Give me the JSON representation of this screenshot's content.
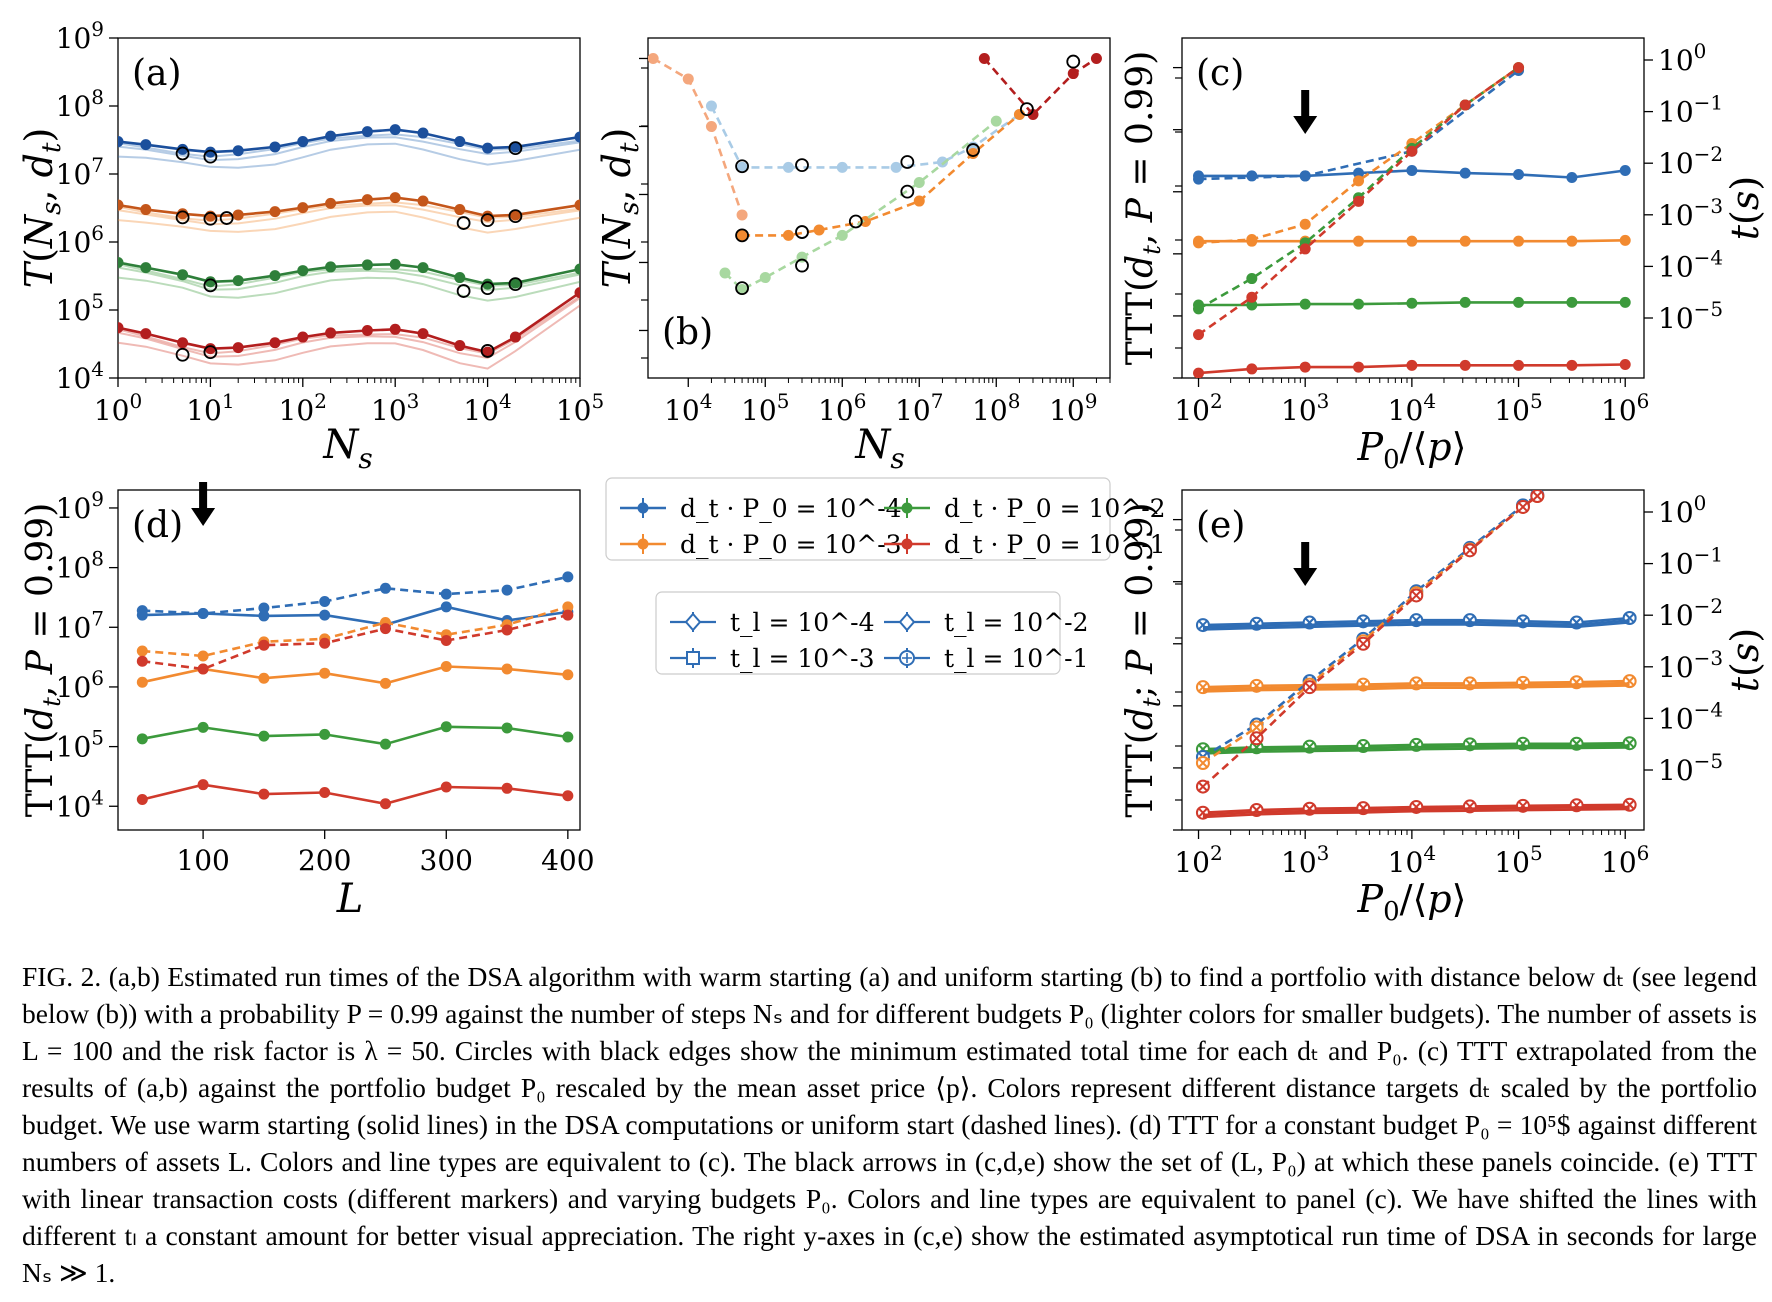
{
  "colors": {
    "blue": "#2f6db5",
    "orange": "#f28a30",
    "green": "#3c9a3c",
    "red": "#d03a2c",
    "dark_blue": "#1b4f9c",
    "dark_orange": "#c4561a",
    "dark_green": "#2e7f3a",
    "dark_red": "#b31e1e",
    "light_blue": "#a9cbe6",
    "light_orange": "#f4a77d",
    "light_green": "#a8d8a0",
    "axis": "#000000"
  },
  "figure": {
    "label": "FIG. 2.",
    "panels": [
      {
        "id": "a",
        "tag": "(a)",
        "xlabel": "N_s",
        "ylabel": "T(N_s, d_t)"
      },
      {
        "id": "b",
        "tag": "(b)",
        "xlabel": "N_s",
        "ylabel": "T(N_s, d_t)"
      },
      {
        "id": "c",
        "tag": "(c)",
        "xlabel": "P_0/⟨p⟩",
        "ylabel": "TTT(d_t, P = 0.99)",
        "ylabel_right": "t(s)"
      },
      {
        "id": "d",
        "tag": "(d)",
        "xlabel": "L",
        "ylabel": "TTT(d_t, P = 0.99)"
      },
      {
        "id": "e",
        "tag": "(e)",
        "xlabel": "P_0/⟨p⟩",
        "ylabel": "TTT(d_t; P = 0.99)",
        "ylabel_right": "t(s)"
      }
    ],
    "legend_dt": [
      {
        "label": "d_t · P_0 = 10^-4",
        "color": "#2f6db5"
      },
      {
        "label": "d_t · P_0 = 10^-3",
        "color": "#f28a30"
      },
      {
        "label": "d_t · P_0 = 10^-2",
        "color": "#3c9a3c"
      },
      {
        "label": "d_t · P_0 = 10^-1",
        "color": "#d03a2c"
      }
    ],
    "legend_tl": [
      {
        "label": "t_l = 10^-4",
        "marker": "diamond"
      },
      {
        "label": "t_l = 10^-3",
        "marker": "square"
      },
      {
        "label": "t_l = 10^-2",
        "marker": "diamond"
      },
      {
        "label": "t_l = 10^-1",
        "marker": "circle-plus"
      }
    ]
  },
  "chart_data": [
    {
      "panel": "a",
      "type": "line",
      "xscale": "log",
      "yscale": "log",
      "xlim": [
        1,
        100000
      ],
      "ylim": [
        10000,
        1000000000
      ],
      "xticks": [
        "10^0",
        "10^1",
        "10^2",
        "10^3",
        "10^4",
        "10^5"
      ],
      "yticks": [
        "10^4",
        "10^5",
        "10^6",
        "10^7",
        "10^8",
        "10^9"
      ],
      "x": [
        1,
        2,
        5,
        10,
        20,
        50,
        100,
        200,
        500,
        1000,
        2000,
        5000,
        10000,
        20000,
        100000
      ],
      "series": [
        {
          "color": "blue",
          "values": [
            30000000,
            27000000,
            23000000,
            21000000,
            22000000,
            25000000,
            30000000,
            36000000,
            42000000,
            45000000,
            40000000,
            30000000,
            24000000,
            25000000,
            35000000
          ]
        },
        {
          "color": "orange",
          "values": [
            3500000,
            3000000,
            2600000,
            2400000,
            2500000,
            2800000,
            3200000,
            3700000,
            4200000,
            4500000,
            4000000,
            3000000,
            2400000,
            2500000,
            3500000
          ]
        },
        {
          "color": "green",
          "values": [
            500000,
            420000,
            330000,
            260000,
            270000,
            320000,
            380000,
            430000,
            460000,
            470000,
            420000,
            300000,
            240000,
            250000,
            400000
          ]
        },
        {
          "color": "red",
          "values": [
            55000,
            45000,
            33000,
            27000,
            28000,
            33000,
            40000,
            46000,
            50000,
            52000,
            45000,
            30000,
            24000,
            40000,
            180000
          ]
        }
      ],
      "minima": [
        {
          "x": 5,
          "y": 20000000
        },
        {
          "x": 10,
          "y": 18000000
        },
        {
          "x": 20000,
          "y": 24000000
        },
        {
          "x": 5,
          "y": 2300000
        },
        {
          "x": 10,
          "y": 2200000
        },
        {
          "x": 15,
          "y": 2250000
        },
        {
          "x": 5500,
          "y": 1900000
        },
        {
          "x": 10000,
          "y": 2100000
        },
        {
          "x": 20000,
          "y": 2400000
        },
        {
          "x": 10,
          "y": 230000
        },
        {
          "x": 5500,
          "y": 190000
        },
        {
          "x": 10000,
          "y": 210000
        },
        {
          "x": 20000,
          "y": 240000
        },
        {
          "x": 5,
          "y": 22000
        },
        {
          "x": 10,
          "y": 24000
        },
        {
          "x": 10000,
          "y": 25000
        }
      ]
    },
    {
      "panel": "b",
      "type": "line",
      "xscale": "log",
      "yscale": "log",
      "xlim": [
        3000,
        3000000000
      ],
      "ylim": [
        20000,
        2000000000
      ],
      "xticks": [
        "10^4",
        "10^5",
        "10^6",
        "10^7",
        "10^8",
        "10^9"
      ],
      "series": [
        {
          "color": "light_orange",
          "style": "dashed",
          "x": [
            3500,
            10000,
            20000,
            50000
          ],
          "values": [
            1000000000,
            500000000,
            100000000,
            5000000
          ]
        },
        {
          "color": "light_blue",
          "style": "dashed",
          "x": [
            20000,
            50000,
            200000,
            1000000,
            5000000,
            20000000,
            50000000,
            200000000
          ],
          "values": [
            200000000,
            25000000,
            25000000,
            25000000,
            25000000,
            30000000,
            50000000,
            150000000
          ]
        },
        {
          "color": "orange",
          "style": "dashed",
          "x": [
            50000,
            200000,
            500000,
            2000000,
            10000000,
            50000000,
            200000000
          ],
          "values": [
            2500000,
            2500000,
            3000000,
            4000000,
            8000000,
            40000000,
            150000000
          ]
        },
        {
          "color": "light_green",
          "style": "dashed",
          "x": [
            30000,
            50000,
            100000,
            300000,
            1000000,
            10000000,
            100000000
          ],
          "values": [
            700000,
            400000,
            600000,
            1200000,
            2500000,
            15000000,
            120000000
          ]
        },
        {
          "color": "dark_red",
          "style": "dashed",
          "x": [
            70000000,
            300000000,
            1000000000,
            2000000000
          ],
          "values": [
            1000000000,
            150000000,
            600000000,
            1000000000
          ]
        }
      ],
      "minima": [
        {
          "x": 50000,
          "y": 26000000
        },
        {
          "x": 300000,
          "y": 27000000
        },
        {
          "x": 7000000,
          "y": 30000000
        },
        {
          "x": 50000000,
          "y": 45000000
        },
        {
          "x": 50000,
          "y": 2500000
        },
        {
          "x": 300000,
          "y": 2800000
        },
        {
          "x": 1500000,
          "y": 4000000
        },
        {
          "x": 7000000,
          "y": 11000000
        },
        {
          "x": 50000,
          "y": 420000
        },
        {
          "x": 300000,
          "y": 900000
        },
        {
          "x": 250000000,
          "y": 180000000
        },
        {
          "x": 1000000000,
          "y": 900000000
        }
      ]
    },
    {
      "panel": "c",
      "type": "line",
      "xscale": "log",
      "yscale": "log",
      "xlim": [
        70,
        1500000
      ],
      "ylim": [
        10000,
        3000000000
      ],
      "xticks": [
        "10^2",
        "10^3",
        "10^4",
        "10^5",
        "10^6"
      ],
      "yticks_right": [
        "10^-5",
        "10^-4",
        "10^-3",
        "10^-2",
        "10^-1",
        "10^0"
      ],
      "x": [
        100,
        316,
        1000,
        3162,
        10000,
        31623,
        100000,
        316228,
        1000000
      ],
      "series": [
        {
          "color": "blue",
          "style": "solid",
          "values": [
            18000000,
            18000000,
            18000000,
            20000000,
            22000000,
            20000000,
            19000000,
            17000000,
            22000000
          ]
        },
        {
          "color": "orange",
          "style": "solid",
          "values": [
            1600000,
            1600000,
            1600000,
            1600000,
            1600000,
            1600000,
            1600000,
            1600000,
            1650000
          ]
        },
        {
          "color": "green",
          "style": "solid",
          "values": [
            150000,
            150000,
            155000,
            155000,
            160000,
            165000,
            165000,
            165000,
            165000
          ]
        },
        {
          "color": "red",
          "style": "solid",
          "values": [
            12000,
            14000,
            15000,
            15000,
            16000,
            16000,
            16000,
            16000,
            16500
          ]
        },
        {
          "color": "blue",
          "style": "dashed",
          "x": [
            100,
            1000,
            10000,
            100000
          ],
          "values": [
            16000000,
            18000000,
            45000000,
            900000000
          ]
        },
        {
          "color": "orange",
          "style": "dashed",
          "x": [
            100,
            316,
            1000,
            3162,
            10000,
            31623,
            100000
          ],
          "values": [
            1500000,
            1700000,
            3000000,
            15000000,
            60000000,
            250000000,
            1000000000
          ]
        },
        {
          "color": "green",
          "style": "dashed",
          "x": [
            100,
            316,
            1000,
            3162,
            10000,
            31623,
            100000
          ],
          "values": [
            130000,
            400000,
            1500000,
            8000000,
            50000000,
            250000000,
            1000000000
          ]
        },
        {
          "color": "red",
          "style": "dashed",
          "x": [
            100,
            316,
            1000,
            3162,
            10000,
            31623,
            100000
          ],
          "values": [
            50000,
            200000,
            1200000,
            7000000,
            45000000,
            250000000,
            1000000000
          ]
        }
      ],
      "arrow_at_x": 1000
    },
    {
      "panel": "d",
      "type": "line",
      "xscale": "linear",
      "yscale": "log",
      "xlim": [
        30,
        410
      ],
      "ylim": [
        4000,
        2000000000
      ],
      "xticks": [
        100,
        200,
        300,
        400
      ],
      "yticks": [
        "10^4",
        "10^5",
        "10^6",
        "10^7",
        "10^8",
        "10^9"
      ],
      "x": [
        50,
        100,
        150,
        200,
        250,
        300,
        350,
        400
      ],
      "series": [
        {
          "color": "blue",
          "style": "solid",
          "values": [
            16000000,
            17000000,
            15500000,
            16000000,
            11000000,
            22000000,
            13000000,
            18000000
          ]
        },
        {
          "color": "blue",
          "style": "dashed",
          "values": [
            19000000,
            17000000,
            21000000,
            27000000,
            45000000,
            36000000,
            42000000,
            70000000
          ]
        },
        {
          "color": "orange",
          "style": "solid",
          "values": [
            1200000,
            2000000,
            1400000,
            1700000,
            1150000,
            2200000,
            2000000,
            1600000
          ]
        },
        {
          "color": "orange",
          "style": "dashed",
          "values": [
            4000000,
            3300000,
            5700000,
            6400000,
            12000000,
            7500000,
            11000000,
            22000000
          ]
        },
        {
          "color": "red",
          "style": "dashed",
          "values": [
            2700000,
            2000000,
            5000000,
            5400000,
            9500000,
            6000000,
            9000000,
            16000000
          ]
        },
        {
          "color": "green",
          "style": "solid",
          "values": [
            135000,
            210000,
            150000,
            160000,
            110000,
            215000,
            205000,
            145000
          ]
        },
        {
          "color": "red",
          "style": "solid",
          "values": [
            13000,
            23000,
            16000,
            17000,
            11000,
            21000,
            20000,
            15000
          ]
        }
      ],
      "arrow_at_x": 100
    },
    {
      "panel": "e",
      "type": "line",
      "xscale": "log",
      "yscale": "log",
      "xlim": [
        70,
        1500000
      ],
      "ylim": [
        10000,
        3000000000
      ],
      "xticks": [
        "10^2",
        "10^3",
        "10^4",
        "10^5",
        "10^6"
      ],
      "yticks_right": [
        "10^-5",
        "10^-4",
        "10^-3",
        "10^-2",
        "10^-1",
        "10^0"
      ],
      "x": [
        110,
        350,
        1100,
        3500,
        11000,
        35000,
        110000,
        350000,
        1100000
      ],
      "series": [
        {
          "color": "blue",
          "style": "solid",
          "values": [
            20000000,
            21000000,
            22000000,
            23000000,
            24000000,
            24000000,
            23000000,
            22000000,
            26000000
          ]
        },
        {
          "color": "orange",
          "style": "solid",
          "values": [
            2000000,
            2100000,
            2150000,
            2200000,
            2300000,
            2300000,
            2350000,
            2400000,
            2500000
          ]
        },
        {
          "color": "green",
          "style": "solid",
          "values": [
            200000,
            215000,
            220000,
            225000,
            235000,
            240000,
            245000,
            245000,
            250000
          ]
        },
        {
          "color": "red",
          "style": "solid",
          "values": [
            19000,
            21000,
            22000,
            22500,
            23500,
            24000,
            24500,
            25000,
            25500
          ]
        },
        {
          "color": "blue",
          "style": "dashed",
          "x": [
            110,
            350,
            1100,
            3500,
            11000,
            35000,
            110000,
            150000
          ],
          "values": [
            150000,
            500000,
            2500000,
            12000000,
            70000000,
            350000000,
            1700000000,
            2500000000
          ]
        },
        {
          "color": "orange",
          "style": "dashed",
          "x": [
            110,
            350,
            1100,
            3500,
            11000,
            35000,
            110000,
            150000
          ],
          "values": [
            120000,
            450000,
            2200000,
            11000000,
            65000000,
            330000000,
            1600000000,
            2400000000
          ]
        },
        {
          "color": "red",
          "style": "dashed",
          "x": [
            110,
            350,
            1100,
            3500,
            11000,
            35000,
            110000,
            150000
          ],
          "values": [
            50000,
            300000,
            2000000,
            10000000,
            60000000,
            320000000,
            1600000000,
            2400000000
          ]
        }
      ],
      "arrow_at_x": 1000
    }
  ],
  "caption": {
    "text": "FIG. 2. (a,b) Estimated run times of the DSA algorithm with warm starting (a) and uniform starting (b) to find a portfolio with distance below dₜ (see legend below (b)) with a probability P = 0.99 against the number of steps Nₛ and for different budgets P₀ (lighter colors for smaller budgets). The number of assets is L = 100 and the risk factor is λ = 50. Circles with black edges show the minimum estimated total time for each dₜ and P₀. (c) TTT extrapolated from the results of (a,b) against the portfolio budget P₀ rescaled by the mean asset price ⟨p⟩. Colors represent different distance targets dₜ scaled by the portfolio budget. We use warm starting (solid lines) in the DSA computations or uniform start (dashed lines). (d) TTT for a constant budget P₀ = 10⁵$ against different numbers of assets L. Colors and line types are equivalent to (c). The black arrows in (c,d,e) show the set of (L, P₀) at which these panels coincide. (e) TTT with linear transaction costs (different markers) and varying budgets P₀. Colors and line types are equivalent to panel (c). We have shifted the lines with different tₗ a constant amount for better visual appreciation. The right y-axes in (c,e) show the estimated asymptotical run time of DSA in seconds for large Nₛ ≫ 1."
  }
}
